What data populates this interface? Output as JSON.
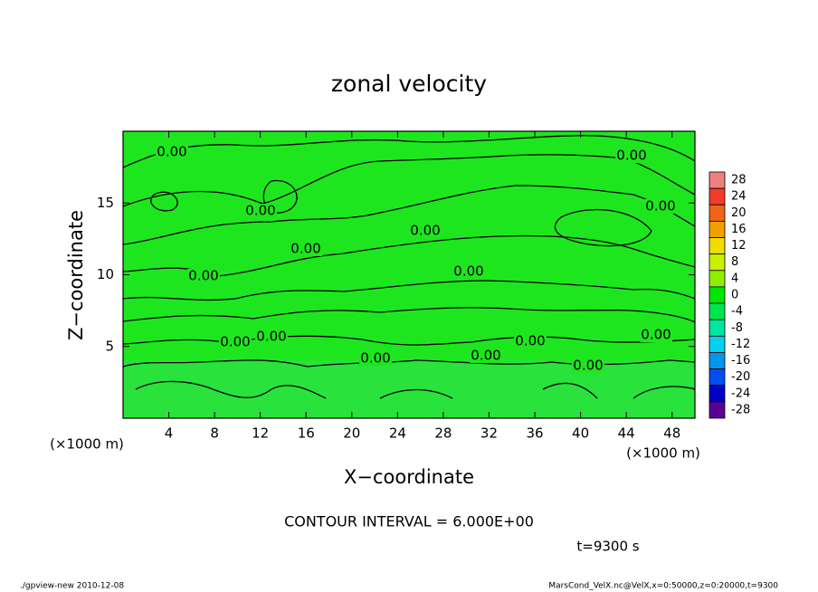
{
  "chart_data": {
    "type": "contour",
    "title": "zonal velocity",
    "x_label": "X−coordinate",
    "y_label": "Z−coordinate",
    "x_unit_left": "(×1000 m)",
    "x_unit_right": "(×1000 m)",
    "xlim": [
      0,
      50
    ],
    "ylim": [
      0,
      20
    ],
    "xticks": [
      4,
      8,
      12,
      16,
      20,
      24,
      28,
      32,
      36,
      40,
      44,
      48
    ],
    "yticks": [
      5,
      10,
      15
    ],
    "contour_labels": [
      "0.00",
      "0.00",
      "0.00",
      "0.00",
      "0.00",
      "0.00",
      "0.00",
      "0.00",
      "0.00",
      "0.00",
      "0.00",
      "0.00",
      "0.00",
      "0.00",
      "0.00"
    ],
    "colorbar": {
      "levels": [
        28,
        24,
        20,
        16,
        12,
        8,
        4,
        0,
        -4,
        -8,
        -12,
        -16,
        -20,
        -24,
        -28
      ],
      "colors": [
        "#f08080",
        "#f03c28",
        "#f06414",
        "#f0a000",
        "#f0dc00",
        "#c8f000",
        "#8cf000",
        "#00e600",
        "#00e650",
        "#00e6a0",
        "#00d2f0",
        "#0096f0",
        "#0050f0",
        "#0000c8",
        "#5a0096"
      ]
    },
    "field_color": "#1ee61e",
    "contour_interval_text": "CONTOUR INTERVAL = 6.000E+00",
    "time_text": "t=9300 s",
    "footer_left": "./gpview-new  2010-12-08",
    "footer_right": "MarsCond_VelX.nc@VelX,x=0:50000,z=0:20000,t=9300"
  }
}
